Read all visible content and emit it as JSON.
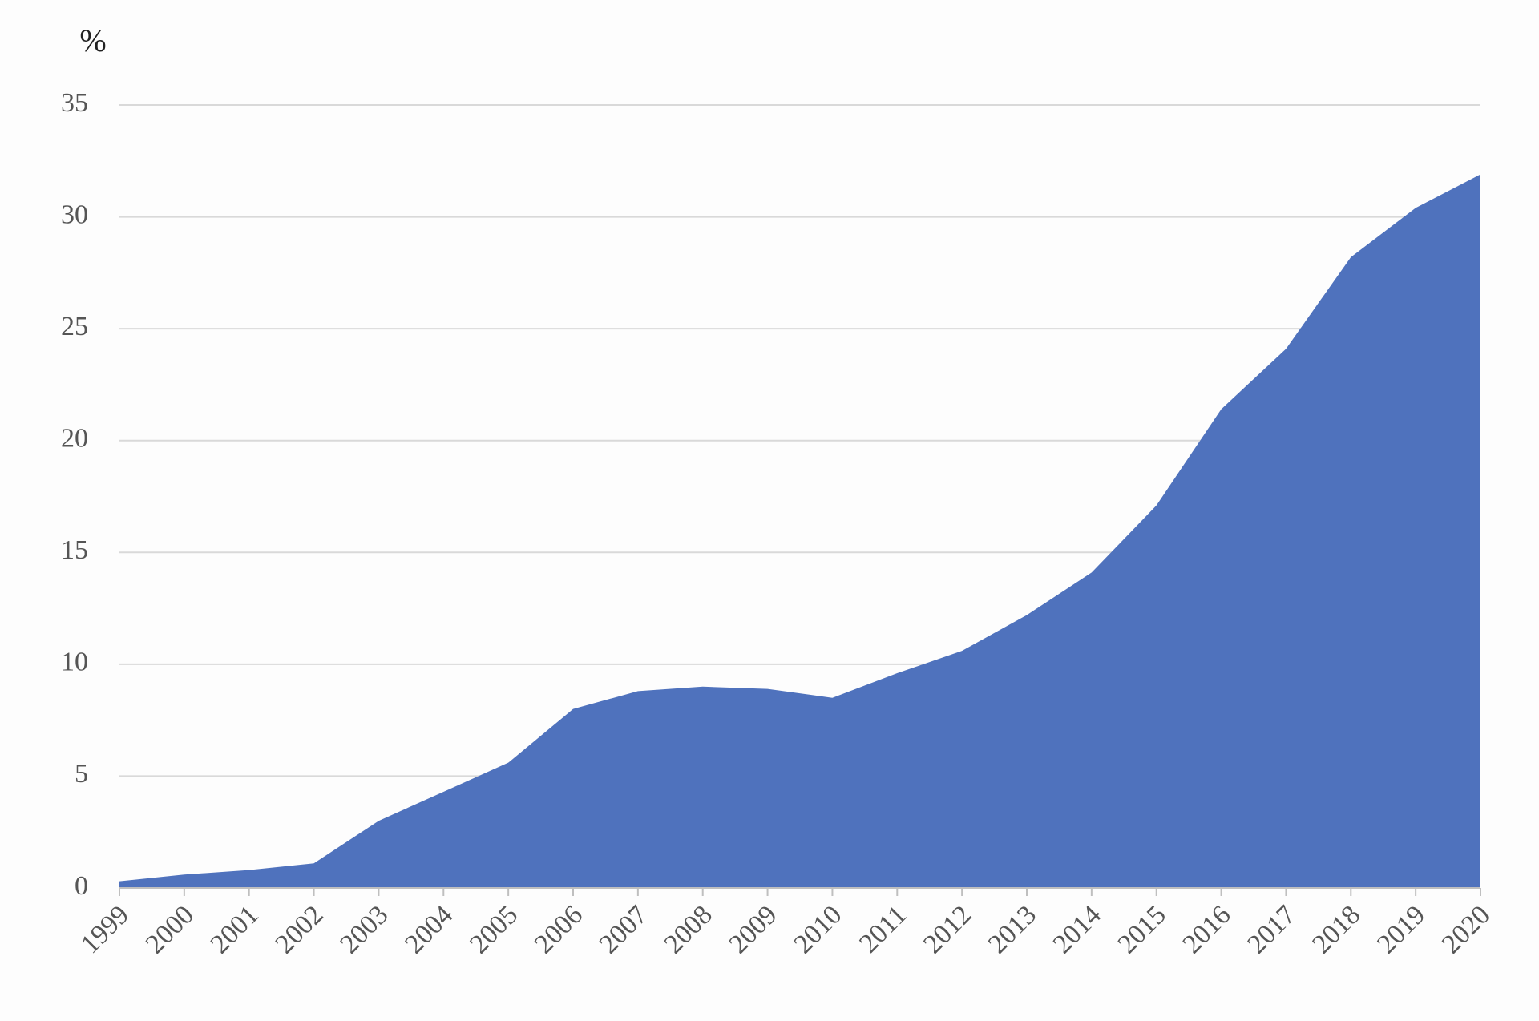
{
  "chart_data": {
    "type": "area",
    "y_label": "%",
    "categories": [
      "1999",
      "2000",
      "2001",
      "2002",
      "2003",
      "2004",
      "2005",
      "2006",
      "2007",
      "2008",
      "2009",
      "2010",
      "2011",
      "2012",
      "2013",
      "2014",
      "2015",
      "2016",
      "2017",
      "2018",
      "2019",
      "2020"
    ],
    "values": [
      0.3,
      0.6,
      0.8,
      1.1,
      3.0,
      4.3,
      5.6,
      8.0,
      8.8,
      9.0,
      8.9,
      8.5,
      9.6,
      10.6,
      12.2,
      14.1,
      17.1,
      21.4,
      24.1,
      28.2,
      30.4,
      31.9
    ],
    "color": "#4f72bd",
    "ylim": [
      0,
      35
    ],
    "yticks": [
      0,
      5,
      10,
      15,
      20,
      25,
      30,
      35
    ],
    "grid": true
  }
}
